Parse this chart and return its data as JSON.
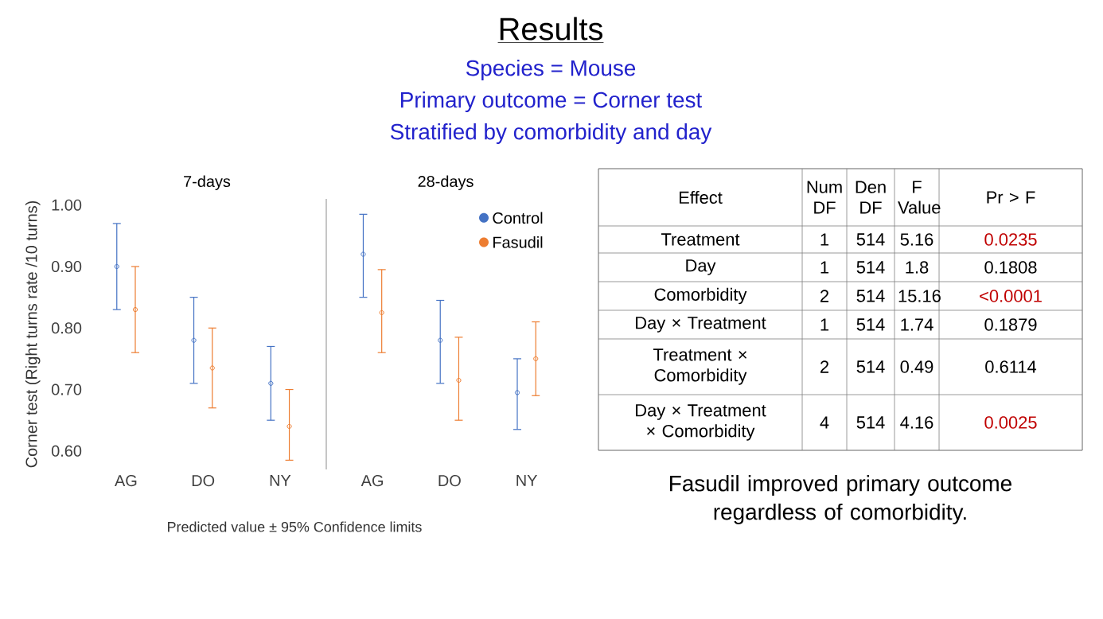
{
  "chart_data": [
    {
      "type": "scatter",
      "title": "7-days",
      "ylabel": "Corner test (Right turns rate /10 turns)",
      "categories": [
        "AG",
        "DO",
        "NY"
      ],
      "ylim": [
        0.57,
        1.01
      ],
      "yticks": [
        {
          "value": 0.6,
          "label": "0.60"
        },
        {
          "value": 0.7,
          "label": "0.70"
        },
        {
          "value": 0.8,
          "label": "0.80"
        },
        {
          "value": 0.9,
          "label": "0.90"
        },
        {
          "value": 1.0,
          "label": "1.00"
        }
      ],
      "marker": "circle",
      "grid": false,
      "legend": false,
      "annotations": [
        "Predicted value ± 95% Confidence limits"
      ],
      "series": [
        {
          "color": "#4472c4",
          "values": [
            0.9,
            0.78,
            0.71
          ],
          "errors": [
            [
              0.83,
              0.97
            ],
            [
              0.71,
              0.85
            ],
            [
              0.65,
              0.77
            ]
          ]
        },
        {
          "color": "#ed7d31",
          "values": [
            0.83,
            0.735,
            0.64
          ],
          "errors": [
            [
              0.76,
              0.9
            ],
            [
              0.67,
              0.8
            ],
            [
              0.585,
              0.7
            ]
          ]
        }
      ]
    },
    {
      "type": "scatter",
      "title": "28-days",
      "categories": [
        "AG",
        "DO",
        "NY"
      ],
      "ylim": [
        0.57,
        1.01
      ],
      "tick_labels": "x",
      "marker": "circle",
      "grid": false,
      "legend": "top right",
      "series": [
        {
          "name": "Control",
          "color": "#4472c4",
          "values": [
            0.92,
            0.78,
            0.695
          ],
          "errors": [
            [
              0.85,
              0.985
            ],
            [
              0.71,
              0.845
            ],
            [
              0.635,
              0.75
            ]
          ]
        },
        {
          "name": "Fasudil",
          "color": "#ed7d31",
          "values": [
            0.825,
            0.715,
            0.75
          ],
          "errors": [
            [
              0.76,
              0.895
            ],
            [
              0.65,
              0.785
            ],
            [
              0.69,
              0.81
            ]
          ]
        }
      ]
    },
    {
      "type": "other",
      "title": "Results",
      "color": "#2222cc",
      "annotations": [
        "Species = Mouse",
        "Primary outcome = Corner test",
        "Stratified by comorbidity and day"
      ]
    },
    {
      "type": "other",
      "annotations": [
        "Effect",
        "Num DF",
        "Den DF",
        "F Value",
        "Pr > F",
        "Treatment",
        "1",
        "514",
        "5.16",
        "0.0235",
        "Day",
        "1",
        "514",
        "1.8",
        "0.1808",
        "Comorbidity",
        "2",
        "514",
        "15.16",
        "<0.0001",
        "Day × Treatment",
        "1",
        "514",
        "1.74",
        "0.1879",
        "Treatment × Comorbidity",
        "2",
        "514",
        "0.49",
        "0.6114",
        "Day × Treatment × Comorbidity",
        "4",
        "514",
        "4.16",
        "0.0025",
        "Fasudil improved primary outcome regardless of comorbidity."
      ],
      "colors": [
        null,
        null,
        null,
        null,
        null,
        null,
        null,
        null,
        null,
        "#c00000",
        null,
        null,
        null,
        null,
        null,
        null,
        null,
        null,
        null,
        "#c00000",
        null,
        null,
        null,
        null,
        null,
        null,
        null,
        null,
        null,
        null,
        null,
        null,
        null,
        null,
        "#c00000",
        null
      ]
    }
  ]
}
